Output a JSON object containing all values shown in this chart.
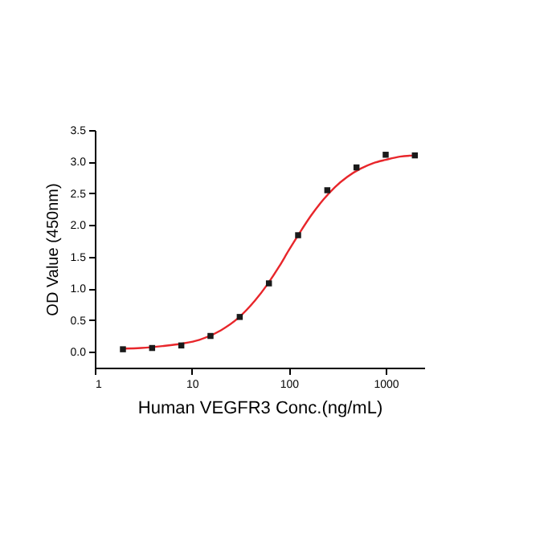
{
  "chart_data": {
    "type": "scatter",
    "xlabel": "Human VEGFR3 Conc.(ng/mL)",
    "ylabel": "OD Value (450nm)",
    "log": "x",
    "grid": false,
    "xlim": [
      1,
      2500
    ],
    "xticks": [
      1,
      10,
      100,
      1000
    ],
    "ylim": [
      -0.25,
      3.5
    ],
    "yticks": [
      {
        "value": 0,
        "label": "0.0"
      },
      {
        "value": 0.5,
        "label": "0.5"
      },
      {
        "value": 1,
        "label": "1.0"
      },
      {
        "value": 1.5,
        "label": "1.5"
      },
      {
        "value": 2,
        "label": "2.0"
      },
      {
        "value": 2.5,
        "label": "2.5"
      },
      {
        "value": 3,
        "label": "3.0"
      },
      {
        "value": 3.5,
        "label": "3.5"
      }
    ],
    "series": [
      {
        "type": "line",
        "color": "#e8262b",
        "line_style": "solid",
        "marker": "none",
        "x": [
          2,
          3,
          5,
          8,
          12,
          20,
          30,
          45,
          60,
          80,
          100,
          130,
          170,
          230,
          300,
          400,
          550,
          750,
          1000,
          1400,
          2000
        ],
        "values": [
          0.05,
          0.06,
          0.09,
          0.13,
          0.19,
          0.34,
          0.53,
          0.81,
          1.06,
          1.35,
          1.6,
          1.88,
          2.15,
          2.41,
          2.6,
          2.76,
          2.89,
          2.98,
          3.03,
          3.08,
          3.1
        ]
      },
      {
        "color": "#1a1a1a",
        "marker": "square",
        "x": [
          1.95,
          3.9,
          7.8,
          15.6,
          31.25,
          62.5,
          125,
          250,
          500,
          1000,
          2000
        ],
        "values": [
          0.04,
          0.06,
          0.1,
          0.25,
          0.55,
          1.08,
          1.84,
          2.55,
          2.91,
          3.11,
          3.1
        ]
      }
    ]
  }
}
